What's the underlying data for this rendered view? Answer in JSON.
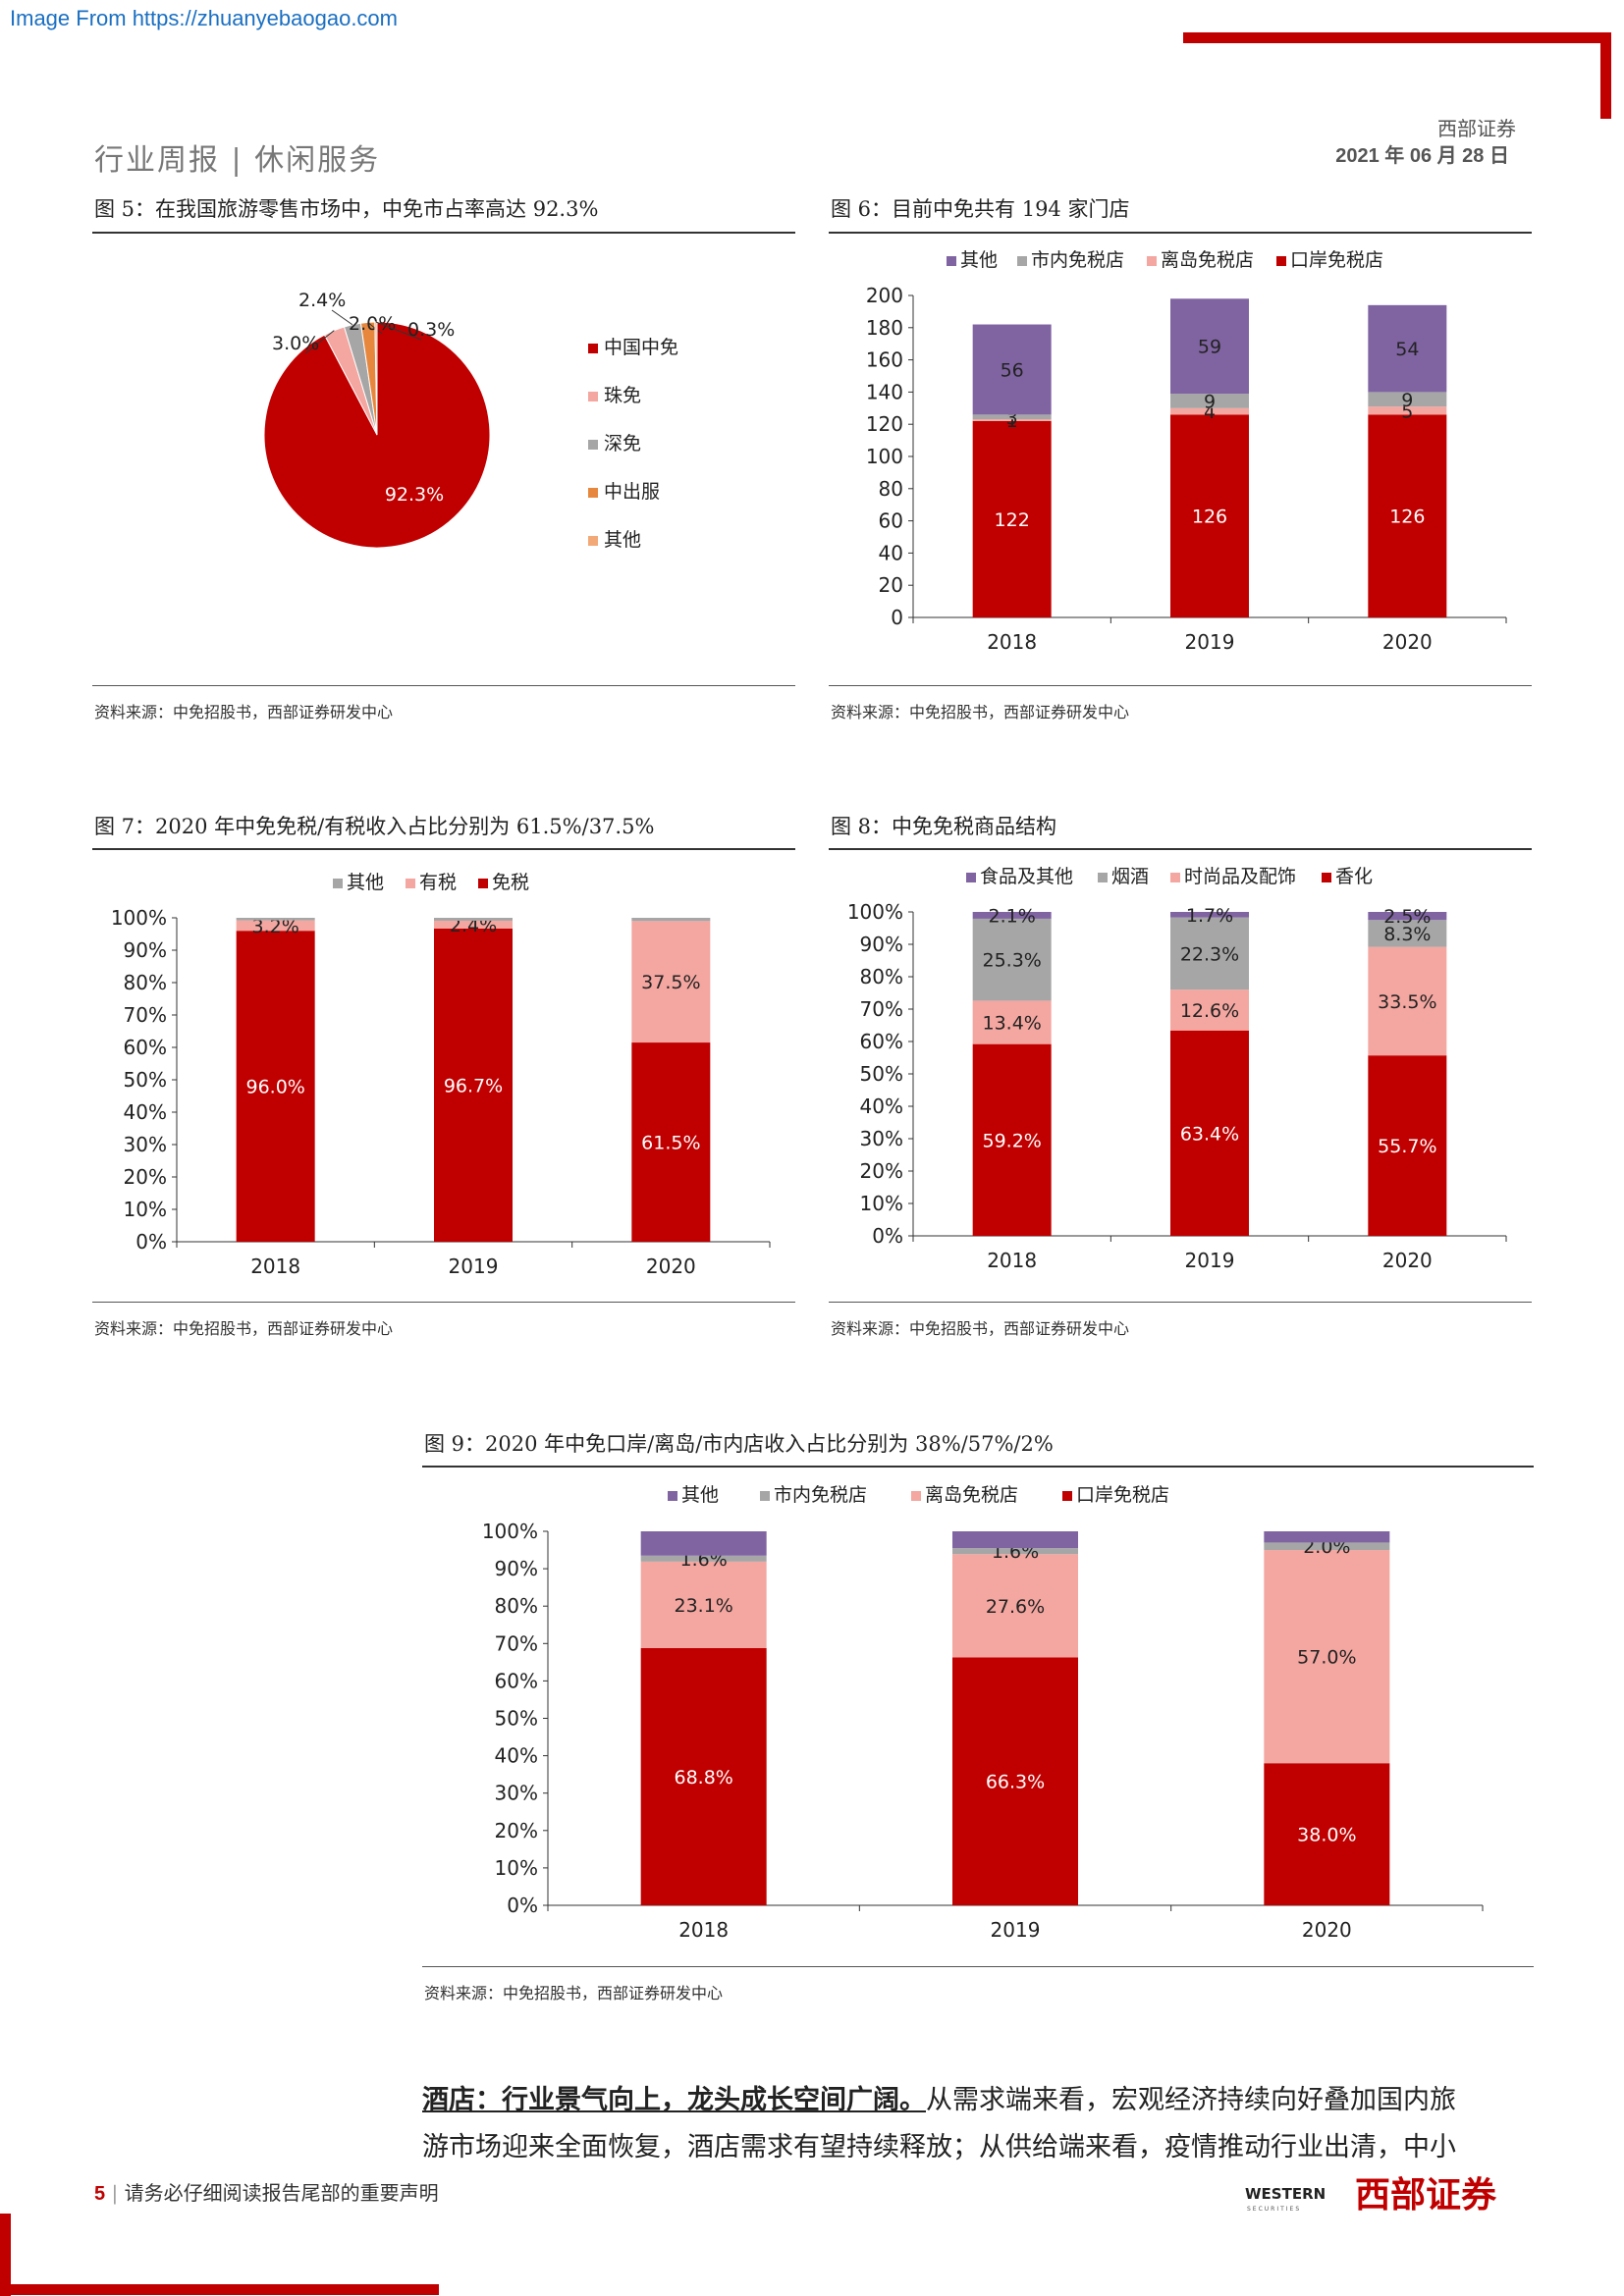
{
  "source_url": "Image From https://zhuanyebaogao.com",
  "header": {
    "left": "行业周报 | 休闲服务",
    "right_brand": "西部证券",
    "right_date": "2021 年 06 月 28 日"
  },
  "figures": {
    "fig5": {
      "title": "图 5：在我国旅游零售市场中，中免市占率高达 92.3%",
      "source": "资料来源：中免招股书，西部证券研发中心"
    },
    "fig6": {
      "title": "图 6：目前中免共有 194 家门店",
      "source": "资料来源：中免招股书，西部证券研发中心"
    },
    "fig7": {
      "title": "图 7：2020 年中免免税/有税收入占比分别为 61.5%/37.5%",
      "source": "资料来源：中免招股书，西部证券研发中心"
    },
    "fig8": {
      "title": "图 8：中免免税商品结构",
      "source": "资料来源：中免招股书，西部证券研发中心"
    },
    "fig9": {
      "title": "图 9：2020 年中免口岸/离岛/市内店收入占比分别为 38%/57%/2%",
      "source": "资料来源：中免招股书，西部证券研发中心"
    }
  },
  "chart_data": [
    {
      "id": "fig5",
      "type": "pie",
      "labels": [
        "中国中免",
        "珠免",
        "深免",
        "中出服",
        "其他"
      ],
      "values": [
        92.3,
        3.0,
        2.4,
        2.0,
        0.3
      ],
      "value_labels": [
        "92.3%",
        "3.0%",
        "2.4%",
        "2.0%",
        "0.3%"
      ],
      "colors": [
        "#c00000",
        "#f4a6a0",
        "#a6a6a6",
        "#e7873d",
        "#f3a878"
      ],
      "legend": "right"
    },
    {
      "id": "fig6",
      "type": "bar",
      "stacked": true,
      "categories": [
        "2018",
        "2019",
        "2020"
      ],
      "series": [
        {
          "name": "口岸免税店",
          "values": [
            122,
            126,
            126
          ],
          "color": "#c00000"
        },
        {
          "name": "离岛免税店",
          "values": [
            1,
            4,
            5
          ],
          "color": "#f4a6a0"
        },
        {
          "name": "市内免税店",
          "values": [
            3,
            9,
            9
          ],
          "color": "#a6a6a6"
        },
        {
          "name": "其他",
          "values": [
            56,
            59,
            54
          ],
          "color": "#8064a2"
        }
      ],
      "ylim": [
        0,
        200
      ],
      "yticks": [
        "0",
        "20",
        "40",
        "60",
        "80",
        "100",
        "120",
        "140",
        "160",
        "180",
        "200"
      ],
      "legend_order": [
        "其他",
        "市内免税店",
        "离岛免税店",
        "口岸免税店"
      ],
      "legend": "top"
    },
    {
      "id": "fig7",
      "type": "bar",
      "stacked": true,
      "categories": [
        "2018",
        "2019",
        "2020"
      ],
      "series": [
        {
          "name": "免税",
          "values": [
            96.0,
            96.7,
            61.5
          ],
          "labels": [
            "96.0%",
            "96.7%",
            "61.5%"
          ],
          "color": "#c00000"
        },
        {
          "name": "有税",
          "values": [
            3.2,
            2.4,
            37.5
          ],
          "labels": [
            "3.2%",
            "2.4%",
            "37.5%"
          ],
          "color": "#f4a6a0"
        },
        {
          "name": "其他",
          "values": [
            0.8,
            0.9,
            1.0
          ],
          "labels": [
            "",
            "",
            ""
          ],
          "color": "#a6a6a6"
        }
      ],
      "ylim": [
        0,
        100
      ],
      "yticks": [
        "0%",
        "10%",
        "20%",
        "30%",
        "40%",
        "50%",
        "60%",
        "70%",
        "80%",
        "90%",
        "100%"
      ],
      "legend_order": [
        "其他",
        "有税",
        "免税"
      ],
      "legend": "top"
    },
    {
      "id": "fig8",
      "type": "bar",
      "stacked": true,
      "categories": [
        "2018",
        "2019",
        "2020"
      ],
      "series": [
        {
          "name": "香化",
          "values": [
            59.2,
            63.4,
            55.7
          ],
          "labels": [
            "59.2%",
            "63.4%",
            "55.7%"
          ],
          "color": "#c00000"
        },
        {
          "name": "时尚品及配饰",
          "values": [
            13.4,
            12.6,
            33.5
          ],
          "labels": [
            "13.4%",
            "12.6%",
            "33.5%"
          ],
          "color": "#f4a6a0"
        },
        {
          "name": "烟酒",
          "values": [
            25.3,
            22.3,
            8.3
          ],
          "labels": [
            "25.3%",
            "22.3%",
            "8.3%"
          ],
          "color": "#a6a6a6"
        },
        {
          "name": "食品及其他",
          "values": [
            2.1,
            1.7,
            2.5
          ],
          "labels": [
            "2.1%",
            "1.7%",
            "2.5%"
          ],
          "color": "#8064a2"
        }
      ],
      "ylim": [
        0,
        100
      ],
      "yticks": [
        "0%",
        "10%",
        "20%",
        "30%",
        "40%",
        "50%",
        "60%",
        "70%",
        "80%",
        "90%",
        "100%"
      ],
      "legend_order": [
        "食品及其他",
        "烟酒",
        "时尚品及配饰",
        "香化"
      ],
      "legend": "top"
    },
    {
      "id": "fig9",
      "type": "bar",
      "stacked": true,
      "categories": [
        "2018",
        "2019",
        "2020"
      ],
      "series": [
        {
          "name": "口岸免税店",
          "values": [
            68.8,
            66.3,
            38.0
          ],
          "labels": [
            "68.8%",
            "66.3%",
            "38.0%"
          ],
          "color": "#c00000"
        },
        {
          "name": "离岛免税店",
          "values": [
            23.1,
            27.6,
            57.0
          ],
          "labels": [
            "23.1%",
            "27.6%",
            "57.0%"
          ],
          "color": "#f4a6a0"
        },
        {
          "name": "市内免税店",
          "values": [
            1.6,
            1.6,
            2.0
          ],
          "labels": [
            "1.6%",
            "1.6%",
            "2.0%"
          ],
          "color": "#a6a6a6"
        },
        {
          "name": "其他",
          "values": [
            6.5,
            4.5,
            3.0
          ],
          "labels": [
            "",
            "",
            ""
          ],
          "color": "#8064a2"
        }
      ],
      "ylim": [
        0,
        100
      ],
      "yticks": [
        "0%",
        "10%",
        "20%",
        "30%",
        "40%",
        "50%",
        "60%",
        "70%",
        "80%",
        "90%",
        "100%"
      ],
      "legend_order": [
        "其他",
        "市内免税店",
        "离岛免税店",
        "口岸免税店"
      ],
      "legend": "top"
    }
  ],
  "body": {
    "lead_bold": "酒店：行业景气向上，龙头成长空间广阔。",
    "text_line1": "从需求端来看，宏观经济持续向好叠加国内旅",
    "text_line2": "游市场迎来全面恢复，酒店需求有望持续释放；从供给端来看，疫情推动行业出清，中小"
  },
  "footer": {
    "page_number": "5",
    "note": "请务必仔细阅读报告尾部的重要声明",
    "logo_en": "WESTERN",
    "logo_en_sub": "SECURITIES",
    "logo_cn": "西部证券"
  }
}
